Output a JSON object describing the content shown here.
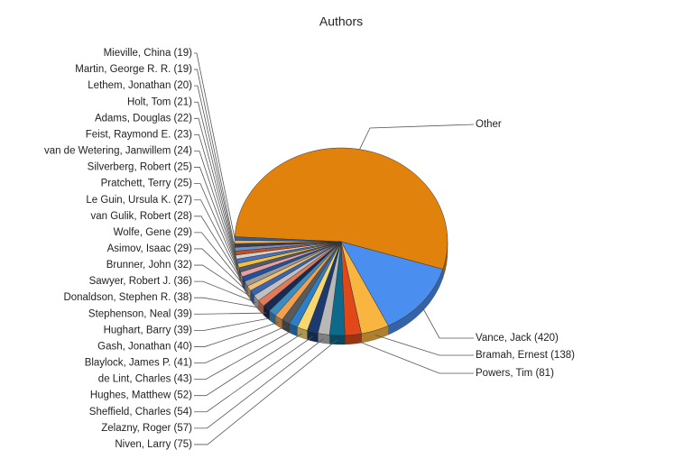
{
  "chart_data": {
    "type": "pie",
    "title": "Authors",
    "categories": [
      "Other",
      "Vance, Jack (420)",
      "Bramah, Ernest (138)",
      "Powers, Tim (81)",
      "Niven, Larry (75)",
      "Zelazny, Roger (57)",
      "Sheffield, Charles (54)",
      "Hughes, Matthew (52)",
      "de Lint, Charles (43)",
      "Blaylock, James P. (41)",
      "Gash, Jonathan (40)",
      "Hughart, Barry (39)",
      "Stephenson, Neal (39)",
      "Donaldson, Stephen R. (38)",
      "Sawyer, Robert J. (36)",
      "Brunner, John (32)",
      "Asimov, Isaac (29)",
      "Wolfe, Gene (29)",
      "van Gulik, Robert (28)",
      "Le Guin, Ursula K. (27)",
      "Pratchett, Terry (25)",
      "Silverberg, Robert (25)",
      "van de Wetering, Janwillem (24)",
      "Feist, Raymond E. (23)",
      "Adams, Douglas (22)",
      "Holt, Tom (21)",
      "Lethem, Jonathan (20)",
      "Martin, George R. R. (19)",
      "Mieville, China (19)"
    ],
    "values": [
      1750,
      420,
      138,
      81,
      75,
      57,
      54,
      52,
      43,
      41,
      40,
      39,
      39,
      38,
      36,
      32,
      29,
      29,
      28,
      27,
      25,
      25,
      24,
      23,
      22,
      21,
      20,
      19,
      19
    ],
    "colors": [
      "#e0820c",
      "#4a8ef0",
      "#f8b540",
      "#e0481a",
      "#0e6a8a",
      "#b8b8b8",
      "#1c3a70",
      "#f7d870",
      "#2a7fc8",
      "#5a5a5a",
      "#f0a050",
      "#3c8cc0",
      "#1a2a50",
      "#e07a5a",
      "#c0c0c0",
      "#3a64b0",
      "#f2c070",
      "#9a9a9a",
      "#2050a0",
      "#e6a0a0",
      "#505a70",
      "#f0c040",
      "#4a70c0",
      "#d0d0d0",
      "#c05020",
      "#7090d0",
      "#404040",
      "#e8b060",
      "#3060a8"
    ]
  }
}
